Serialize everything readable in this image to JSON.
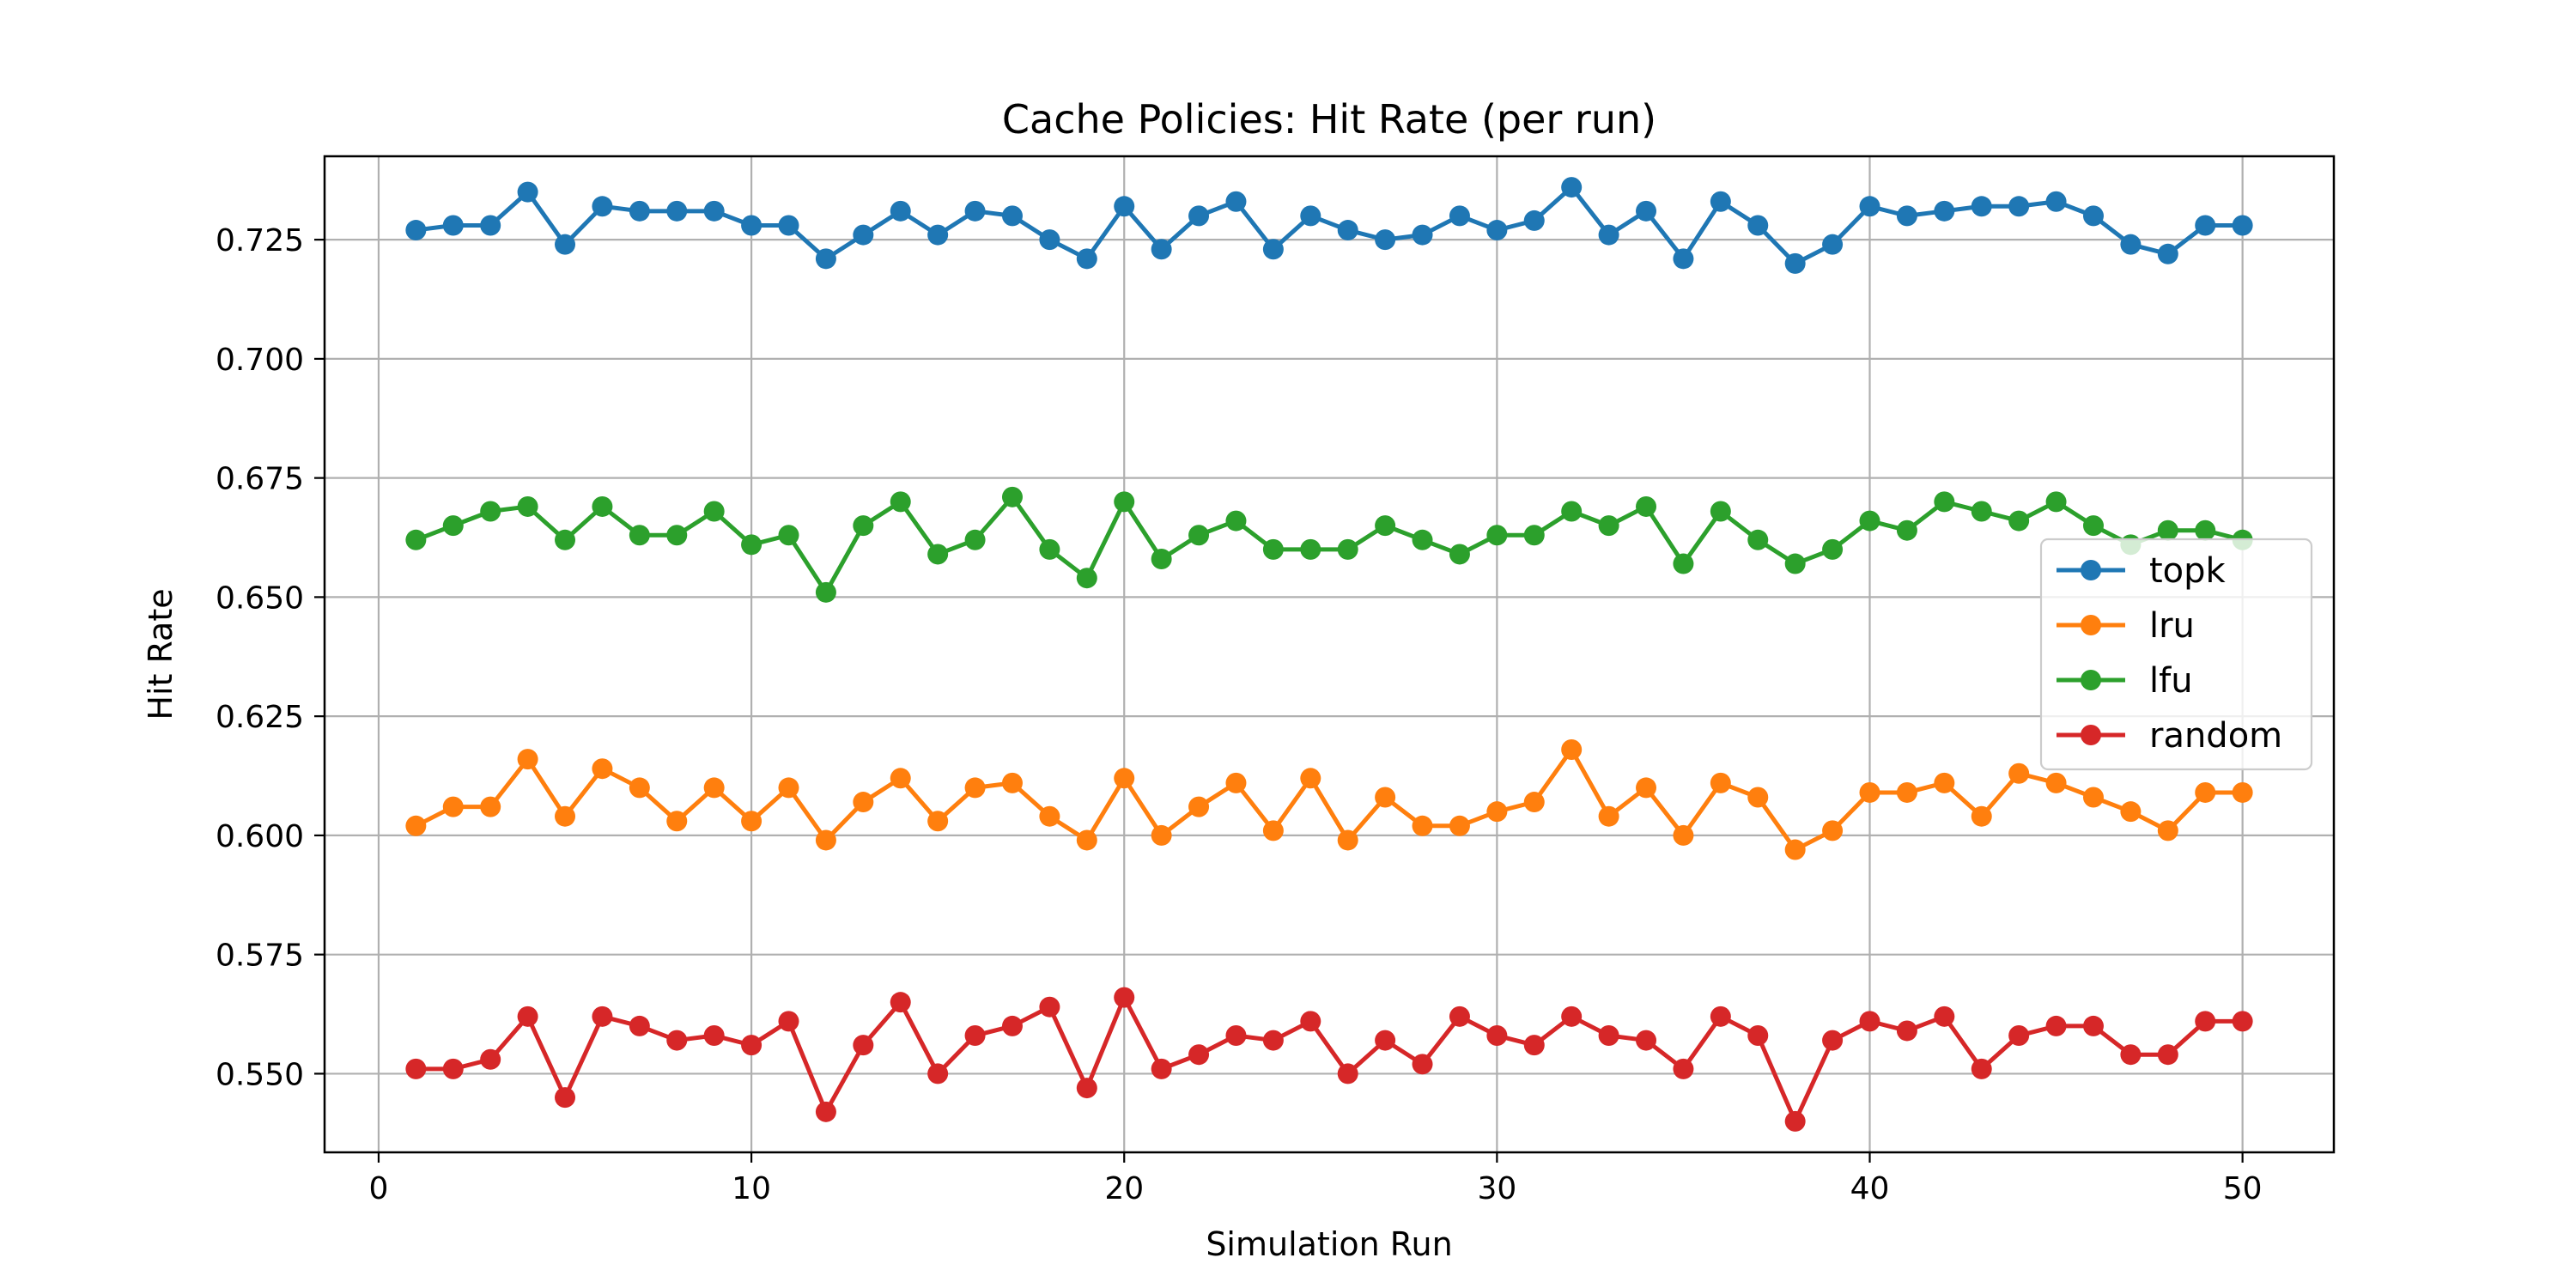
{
  "chart_data": {
    "type": "line",
    "title": "Cache Policies: Hit Rate (per run)",
    "xlabel": "Simulation Run",
    "ylabel": "Hit Rate",
    "xlim": [
      -1.45,
      52.45
    ],
    "ylim": [
      0.5335,
      0.7425
    ],
    "xticks": [
      0,
      10,
      20,
      30,
      40,
      50
    ],
    "yticks": [
      0.55,
      0.575,
      0.6,
      0.625,
      0.65,
      0.675,
      0.7,
      0.725
    ],
    "ytick_labels": [
      "0.550",
      "0.575",
      "0.600",
      "0.625",
      "0.650",
      "0.675",
      "0.700",
      "0.725"
    ],
    "grid": true,
    "legend_position": "center-right",
    "x": [
      1,
      2,
      3,
      4,
      5,
      6,
      7,
      8,
      9,
      10,
      11,
      12,
      13,
      14,
      15,
      16,
      17,
      18,
      19,
      20,
      21,
      22,
      23,
      24,
      25,
      26,
      27,
      28,
      29,
      30,
      31,
      32,
      33,
      34,
      35,
      36,
      37,
      38,
      39,
      40,
      41,
      42,
      43,
      44,
      45,
      46,
      47,
      48,
      49,
      50
    ],
    "series": [
      {
        "name": "topk",
        "color": "#1f77b4",
        "values": [
          0.727,
          0.728,
          0.728,
          0.735,
          0.724,
          0.732,
          0.731,
          0.731,
          0.731,
          0.728,
          0.728,
          0.721,
          0.726,
          0.731,
          0.726,
          0.731,
          0.73,
          0.725,
          0.721,
          0.732,
          0.723,
          0.73,
          0.733,
          0.723,
          0.73,
          0.727,
          0.725,
          0.726,
          0.73,
          0.727,
          0.729,
          0.736,
          0.726,
          0.731,
          0.721,
          0.733,
          0.728,
          0.72,
          0.724,
          0.732,
          0.73,
          0.731,
          0.732,
          0.732,
          0.733,
          0.73,
          0.724,
          0.722,
          0.728,
          0.728
        ]
      },
      {
        "name": "lru",
        "color": "#ff7f0e",
        "values": [
          0.602,
          0.606,
          0.606,
          0.616,
          0.604,
          0.614,
          0.61,
          0.603,
          0.61,
          0.603,
          0.61,
          0.599,
          0.607,
          0.612,
          0.603,
          0.61,
          0.611,
          0.604,
          0.599,
          0.612,
          0.6,
          0.606,
          0.611,
          0.601,
          0.612,
          0.599,
          0.608,
          0.602,
          0.602,
          0.605,
          0.607,
          0.618,
          0.604,
          0.61,
          0.6,
          0.611,
          0.608,
          0.597,
          0.601,
          0.609,
          0.609,
          0.611,
          0.604,
          0.613,
          0.611,
          0.608,
          0.605,
          0.601,
          0.609,
          0.609
        ]
      },
      {
        "name": "lfu",
        "color": "#2ca02c",
        "values": [
          0.662,
          0.665,
          0.668,
          0.669,
          0.662,
          0.669,
          0.663,
          0.663,
          0.668,
          0.661,
          0.663,
          0.651,
          0.665,
          0.67,
          0.659,
          0.662,
          0.671,
          0.66,
          0.654,
          0.67,
          0.658,
          0.663,
          0.666,
          0.66,
          0.66,
          0.66,
          0.665,
          0.662,
          0.659,
          0.663,
          0.663,
          0.668,
          0.665,
          0.669,
          0.657,
          0.668,
          0.662,
          0.657,
          0.66,
          0.666,
          0.664,
          0.67,
          0.668,
          0.666,
          0.67,
          0.665,
          0.661,
          0.664,
          0.664,
          0.662
        ]
      },
      {
        "name": "random",
        "color": "#d62728",
        "values": [
          0.551,
          0.551,
          0.553,
          0.562,
          0.545,
          0.562,
          0.56,
          0.557,
          0.558,
          0.556,
          0.561,
          0.542,
          0.556,
          0.565,
          0.55,
          0.558,
          0.56,
          0.564,
          0.547,
          0.566,
          0.551,
          0.554,
          0.558,
          0.557,
          0.561,
          0.55,
          0.557,
          0.552,
          0.562,
          0.558,
          0.556,
          0.562,
          0.558,
          0.557,
          0.551,
          0.562,
          0.558,
          0.54,
          0.557,
          0.561,
          0.559,
          0.562,
          0.551,
          0.558,
          0.56,
          0.56,
          0.554,
          0.554,
          0.561,
          0.561
        ]
      }
    ]
  }
}
